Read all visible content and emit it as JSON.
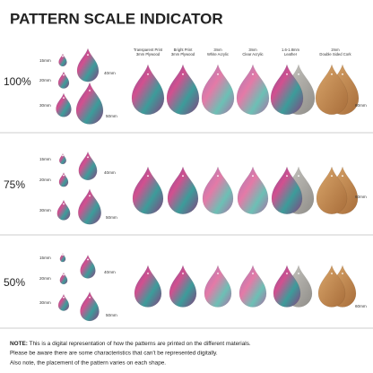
{
  "header": {
    "title": "PATTERN SCALE INDICATOR"
  },
  "columns": [
    [
      "Transparent Print",
      "3mm Plywood"
    ],
    [
      "Bright Print",
      "3mm Plywood"
    ],
    [
      "3mm",
      "White Acrylic"
    ],
    [
      "3mm",
      "Clear Acrylic"
    ],
    [
      "1.6-1.8mm",
      "Leather"
    ],
    [
      "2mm",
      "Double Sided Cork"
    ]
  ],
  "rows": [
    {
      "scale": "100%",
      "sizes": [
        "15mm",
        "20mm",
        "30mm",
        "40mm",
        "50mm",
        "60mm"
      ]
    },
    {
      "scale": "75%",
      "sizes": [
        "15mm",
        "20mm",
        "30mm",
        "40mm",
        "50mm",
        "60mm"
      ]
    },
    {
      "scale": "50%",
      "sizes": [
        "15mm",
        "20mm",
        "30mm",
        "40mm",
        "50mm",
        "60mm"
      ]
    }
  ],
  "note": {
    "label": "NOTE:",
    "lines": [
      " This is a digital representation of how the patterns are printed on the different materials.",
      "Please be aware there are some characteristics that can't be represented digitally.",
      "Also note, the placement of the pattern varies on each shape."
    ]
  }
}
